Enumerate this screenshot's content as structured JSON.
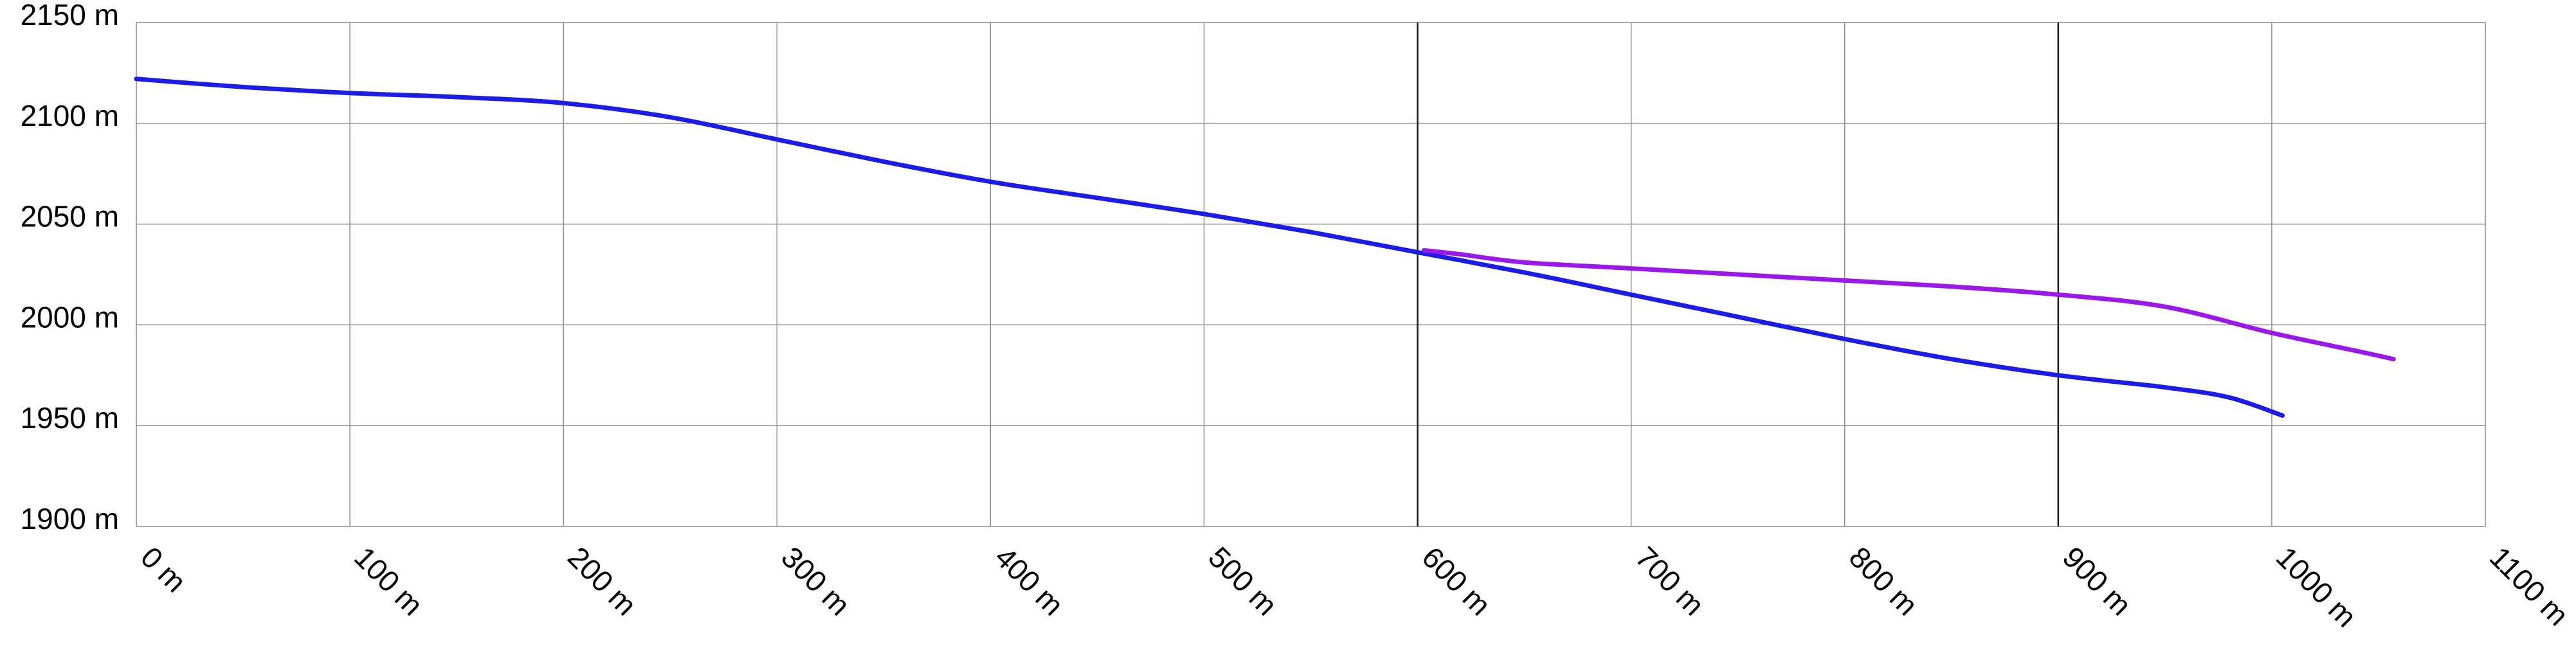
{
  "chart_data": {
    "type": "line",
    "title": "",
    "xlabel": "",
    "ylabel": "",
    "xlim": [
      0,
      1100
    ],
    "ylim": [
      1900,
      2150
    ],
    "x_ticks": [
      {
        "value": 0,
        "label": "0 m"
      },
      {
        "value": 100,
        "label": "100 m"
      },
      {
        "value": 200,
        "label": "200 m"
      },
      {
        "value": 300,
        "label": "300 m"
      },
      {
        "value": 400,
        "label": "400 m"
      },
      {
        "value": 500,
        "label": "500 m"
      },
      {
        "value": 600,
        "label": "600 m"
      },
      {
        "value": 700,
        "label": "700 m"
      },
      {
        "value": 800,
        "label": "800 m"
      },
      {
        "value": 900,
        "label": "900 m"
      },
      {
        "value": 1000,
        "label": "1000 m"
      },
      {
        "value": 1100,
        "label": "1100 m"
      }
    ],
    "y_ticks": [
      {
        "value": 1900,
        "label": "1900 m"
      },
      {
        "value": 1950,
        "label": "1950 m"
      },
      {
        "value": 2000,
        "label": "2000 m"
      },
      {
        "value": 2050,
        "label": "2050 m"
      },
      {
        "value": 2100,
        "label": "2100 m"
      },
      {
        "value": 2150,
        "label": "2150 m"
      }
    ],
    "emphasized_x_gridlines": [
      600,
      900
    ],
    "grid": true,
    "legend": "none",
    "series": [
      {
        "color": "#1c1ce6",
        "x": [
          0,
          50,
          100,
          150,
          200,
          250,
          300,
          350,
          400,
          450,
          500,
          550,
          600,
          650,
          700,
          750,
          800,
          850,
          900,
          950,
          980,
          1005
        ],
        "y": [
          2122,
          2118,
          2115,
          2113,
          2110,
          2103,
          2092,
          2081,
          2071,
          2063,
          2055,
          2046,
          2036,
          2026,
          2015,
          2004,
          1993,
          1983,
          1975,
          1969,
          1964,
          1955
        ]
      },
      {
        "color": "#9a19e6",
        "x": [
          603,
          620,
          650,
          700,
          750,
          800,
          850,
          900,
          950,
          1000,
          1040,
          1057
        ],
        "y": [
          2037,
          2035,
          2031,
          2028,
          2025,
          2022,
          2019,
          2015,
          2009,
          1996,
          1987,
          1983
        ]
      }
    ]
  }
}
